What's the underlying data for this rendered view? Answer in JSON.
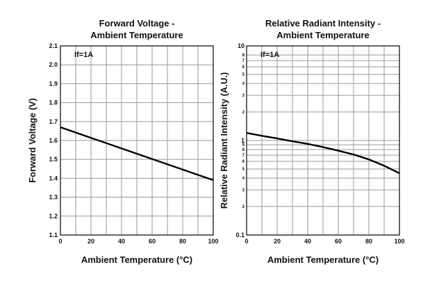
{
  "chart_data": [
    {
      "type": "line",
      "title_lines": [
        "Forward Voltage -",
        "Ambient Temperature"
      ],
      "xlabel": "Ambient Temperature (°C)",
      "ylabel": "Forward Voltage (V)",
      "annotation": "If=1A",
      "xlim": [
        0,
        100
      ],
      "ylim": [
        1.1,
        2.1
      ],
      "x_ticks": [
        0,
        20,
        40,
        60,
        80,
        100
      ],
      "y_ticks": [
        1.1,
        1.2,
        1.3,
        1.4,
        1.5,
        1.6,
        1.7,
        1.8,
        1.9,
        2.0,
        2.1
      ],
      "y_tick_labels": [
        "1.1",
        "1.2",
        "1.3",
        "1.4",
        "1.5",
        "1.6",
        "1.7",
        "1.8",
        "1.9",
        "2.0",
        "2.1"
      ],
      "x_grid": [
        0,
        10,
        20,
        30,
        40,
        50,
        60,
        70,
        80,
        90,
        100
      ],
      "grid": true,
      "series": [
        {
          "x": [
            0,
            100
          ],
          "y": [
            1.67,
            1.39
          ]
        }
      ]
    },
    {
      "type": "line",
      "title_lines": [
        "Relative Radiant Intensity -",
        "Ambient Temperature"
      ],
      "xlabel": "Ambient Temperature (°C)",
      "ylabel": "Relative Radiant Intensity (A.U.)",
      "annotation": "If=1A",
      "xlim": [
        0,
        100
      ],
      "ylim": [
        0.1,
        10
      ],
      "y_scale": "log",
      "x_ticks": [
        0,
        20,
        40,
        60,
        80,
        100
      ],
      "y_major_labels": [
        {
          "v": 10,
          "t": "10"
        },
        {
          "v": 1,
          "t": "1"
        },
        {
          "v": 0.1,
          "t": "0.1"
        }
      ],
      "y_minor_labels": [
        {
          "v": 8,
          "t": "8"
        },
        {
          "v": 7,
          "t": "7"
        },
        {
          "v": 6,
          "t": "6"
        },
        {
          "v": 5,
          "t": "5"
        },
        {
          "v": 4,
          "t": "4"
        },
        {
          "v": 3,
          "t": "3"
        },
        {
          "v": 2,
          "t": "2"
        },
        {
          "v": 0.9,
          "t": "9"
        },
        {
          "v": 0.8,
          "t": "8"
        },
        {
          "v": 0.7,
          "t": "7"
        },
        {
          "v": 0.6,
          "t": "6"
        },
        {
          "v": 0.5,
          "t": "5"
        },
        {
          "v": 0.4,
          "t": "4"
        },
        {
          "v": 0.3,
          "t": "3"
        },
        {
          "v": 0.2,
          "t": "2"
        }
      ],
      "x_grid": [
        0,
        10,
        20,
        30,
        40,
        50,
        60,
        70,
        80,
        90,
        100
      ],
      "grid": true,
      "series": [
        {
          "x": [
            0,
            10,
            20,
            30,
            40,
            50,
            60,
            70,
            80,
            90,
            100
          ],
          "y": [
            1.2,
            1.12,
            1.05,
            0.98,
            0.92,
            0.85,
            0.78,
            0.71,
            0.63,
            0.54,
            0.45
          ]
        }
      ]
    }
  ]
}
